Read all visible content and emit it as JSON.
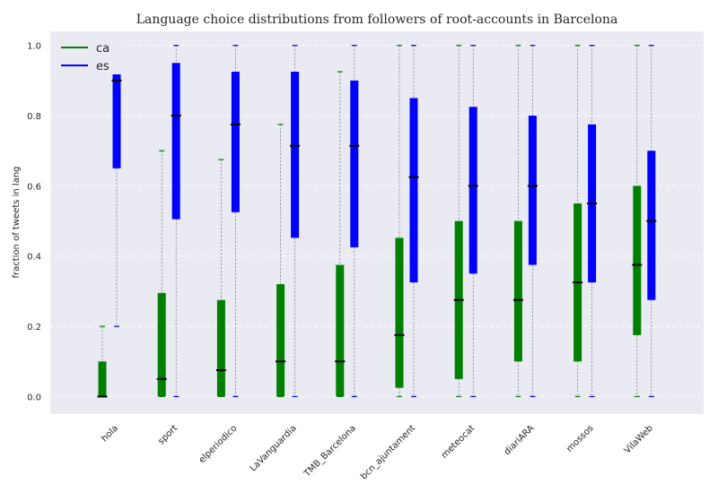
{
  "chart_data": {
    "type": "boxplot",
    "title": "Language choice distributions from followers of root-accounts in Barcelona",
    "xlabel": "",
    "ylabel": "fraction of tweets in lang",
    "ylim": [
      -0.05,
      1.04
    ],
    "yticks": [
      "0.0",
      "0.2",
      "0.4",
      "0.6",
      "0.8",
      "1.0"
    ],
    "grid": true,
    "legend_position": "top-left",
    "categories": [
      "hola",
      "sport",
      "elperiodico",
      "LaVanguardia",
      "TMB_Barcelona",
      "bcn_ajuntament",
      "meteocat",
      "diariARA",
      "mossos",
      "VilaWeb"
    ],
    "series": [
      {
        "name": "ca",
        "color": "#008000",
        "boxes": [
          {
            "whisker_low": 0.0,
            "q1": 0.0,
            "median": 0.0,
            "q3": 0.1,
            "whisker_high": 0.2
          },
          {
            "whisker_low": 0.0,
            "q1": 0.0,
            "median": 0.05,
            "q3": 0.295,
            "whisker_high": 0.7
          },
          {
            "whisker_low": 0.0,
            "q1": 0.0,
            "median": 0.075,
            "q3": 0.275,
            "whisker_high": 0.675
          },
          {
            "whisker_low": 0.0,
            "q1": 0.0,
            "median": 0.1,
            "q3": 0.32,
            "whisker_high": 0.775
          },
          {
            "whisker_low": 0.0,
            "q1": 0.0,
            "median": 0.1,
            "q3": 0.375,
            "whisker_high": 0.925
          },
          {
            "whisker_low": 0.0,
            "q1": 0.025,
            "median": 0.175,
            "q3": 0.452,
            "whisker_high": 1.0
          },
          {
            "whisker_low": 0.0,
            "q1": 0.05,
            "median": 0.275,
            "q3": 0.5,
            "whisker_high": 1.0
          },
          {
            "whisker_low": 0.0,
            "q1": 0.1,
            "median": 0.275,
            "q3": 0.5,
            "whisker_high": 1.0
          },
          {
            "whisker_low": 0.0,
            "q1": 0.1,
            "median": 0.325,
            "q3": 0.55,
            "whisker_high": 1.0
          },
          {
            "whisker_low": 0.0,
            "q1": 0.175,
            "median": 0.375,
            "q3": 0.6,
            "whisker_high": 1.0
          }
        ]
      },
      {
        "name": "es",
        "color": "#0000ff",
        "boxes": [
          {
            "whisker_low": 0.2,
            "q1": 0.65,
            "median": 0.9,
            "q3": 0.975,
            "whisker_high": 1.0
          },
          {
            "whisker_low": 0.0,
            "q1": 0.505,
            "median": 0.8,
            "q3": 0.95,
            "whisker_high": 1.0
          },
          {
            "whisker_low": 0.0,
            "q1": 0.525,
            "median": 0.775,
            "q3": 0.925,
            "whisker_high": 1.0
          },
          {
            "whisker_low": 0.0,
            "q1": 0.452,
            "median": 0.714,
            "q3": 0.925,
            "whisker_high": 1.0
          },
          {
            "whisker_low": 0.0,
            "q1": 0.425,
            "median": 0.714,
            "q3": 0.9,
            "whisker_high": 1.0
          },
          {
            "whisker_low": 0.0,
            "q1": 0.325,
            "median": 0.625,
            "q3": 0.85,
            "whisker_high": 1.0
          },
          {
            "whisker_low": 0.0,
            "q1": 0.35,
            "median": 0.6,
            "q3": 0.825,
            "whisker_high": 1.0
          },
          {
            "whisker_low": 0.0,
            "q1": 0.375,
            "median": 0.6,
            "q3": 0.8,
            "whisker_high": 1.0
          },
          {
            "whisker_low": 0.0,
            "q1": 0.325,
            "median": 0.55,
            "q3": 0.775,
            "whisker_high": 1.0
          },
          {
            "whisker_low": 0.0,
            "q1": 0.275,
            "median": 0.5,
            "q3": 0.7,
            "whisker_high": 1.0
          }
        ]
      }
    ]
  }
}
